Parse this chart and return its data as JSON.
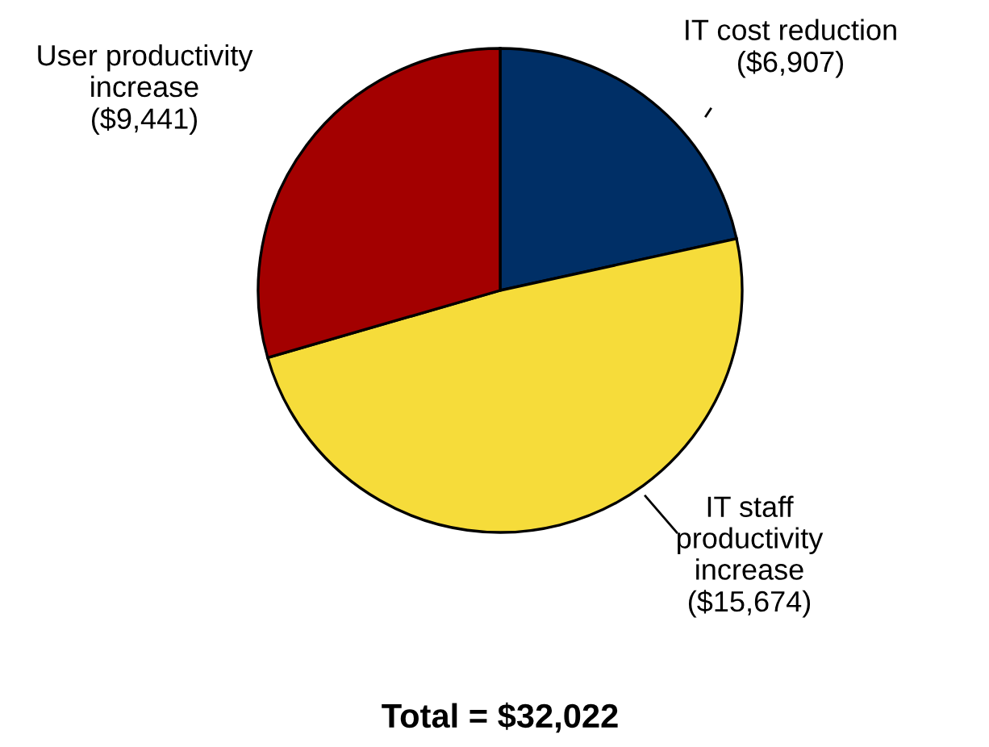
{
  "chart_data": {
    "type": "pie",
    "categories": [
      "IT cost reduction",
      "IT staff\nproductivity\nincrease",
      "User productivity\nincrease"
    ],
    "values": [
      6907,
      15674,
      9441
    ],
    "value_labels": [
      "($6,907)",
      "($15,674)",
      "($9,441)"
    ],
    "colors": [
      "#002f66",
      "#f6dc3a",
      "#a30000"
    ],
    "annotations": [
      "Total = $32,022"
    ],
    "legend": false
  }
}
